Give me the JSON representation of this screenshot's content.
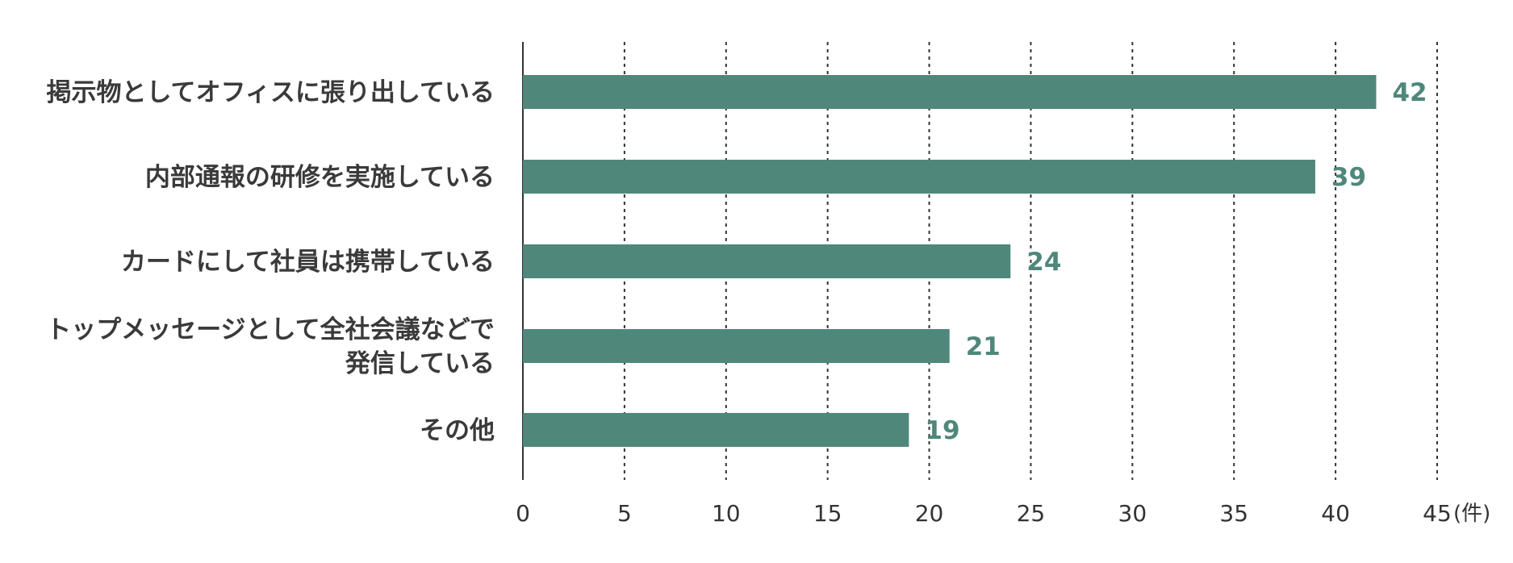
{
  "chart_data": {
    "type": "bar",
    "orientation": "horizontal",
    "categories": [
      "掲示物としてオフィスに張り出している",
      "内部通報の研修を実施している",
      "カードにして社員は携帯している",
      "トップメッセージとして全社会議などで発信している",
      "その他"
    ],
    "category_lines": [
      [
        "掲示物としてオフィスに張り出している"
      ],
      [
        "内部通報の研修を実施している"
      ],
      [
        "カードにして社員は携帯している"
      ],
      [
        "トップメッセージとして全社会議などで",
        "発信している"
      ],
      [
        "その他"
      ]
    ],
    "values": [
      42,
      39,
      24,
      21,
      19
    ],
    "xlim": [
      0,
      45
    ],
    "xticks": [
      0,
      5,
      10,
      15,
      20,
      25,
      30,
      35,
      40,
      45
    ],
    "unit": "(件)",
    "grid": true,
    "bar_color": "#4f877b",
    "value_label_color": "#4f877b"
  }
}
